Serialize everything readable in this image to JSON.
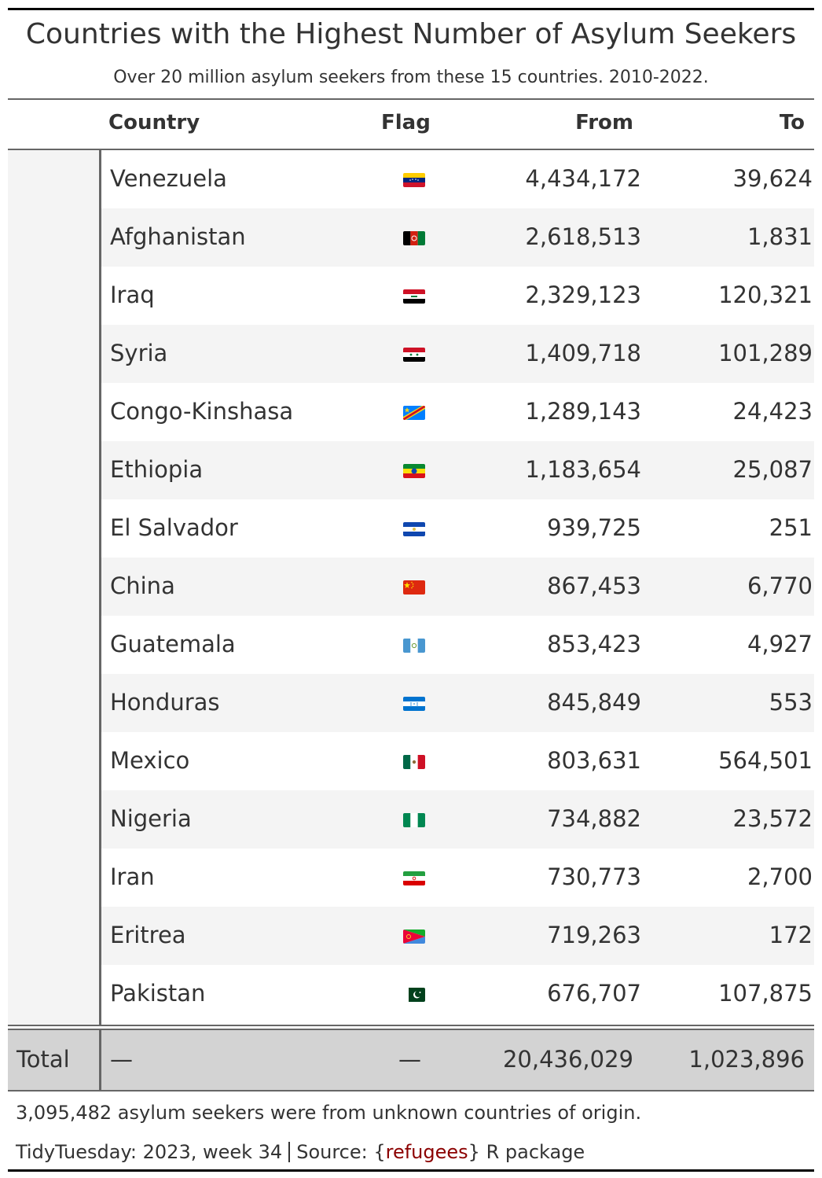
{
  "title": "Countries with the Highest Number of Asylum Seekers",
  "subtitle": "Over 20 million asylum seekers from these 15 countries. 2010-2022.",
  "columns": {
    "country": "Country",
    "flag": "Flag",
    "from": "From",
    "to": "To"
  },
  "rows": [
    {
      "country": "Venezuela",
      "flag": "flag-venezuela-icon",
      "from": "4,434,172",
      "to": "39,624"
    },
    {
      "country": "Afghanistan",
      "flag": "flag-afghanistan-icon",
      "from": "2,618,513",
      "to": "1,831"
    },
    {
      "country": "Iraq",
      "flag": "flag-iraq-icon",
      "from": "2,329,123",
      "to": "120,321"
    },
    {
      "country": "Syria",
      "flag": "flag-syria-icon",
      "from": "1,409,718",
      "to": "101,289"
    },
    {
      "country": "Congo-Kinshasa",
      "flag": "flag-congo-kinshasa-icon",
      "from": "1,289,143",
      "to": "24,423"
    },
    {
      "country": "Ethiopia",
      "flag": "flag-ethiopia-icon",
      "from": "1,183,654",
      "to": "25,087"
    },
    {
      "country": "El Salvador",
      "flag": "flag-el-salvador-icon",
      "from": "939,725",
      "to": "251"
    },
    {
      "country": "China",
      "flag": "flag-china-icon",
      "from": "867,453",
      "to": "6,770"
    },
    {
      "country": "Guatemala",
      "flag": "flag-guatemala-icon",
      "from": "853,423",
      "to": "4,927"
    },
    {
      "country": "Honduras",
      "flag": "flag-honduras-icon",
      "from": "845,849",
      "to": "553"
    },
    {
      "country": "Mexico",
      "flag": "flag-mexico-icon",
      "from": "803,631",
      "to": "564,501"
    },
    {
      "country": "Nigeria",
      "flag": "flag-nigeria-icon",
      "from": "734,882",
      "to": "23,572"
    },
    {
      "country": "Iran",
      "flag": "flag-iran-icon",
      "from": "730,773",
      "to": "2,700"
    },
    {
      "country": "Eritrea",
      "flag": "flag-eritrea-icon",
      "from": "719,263",
      "to": "172"
    },
    {
      "country": "Pakistan",
      "flag": "flag-pakistan-icon",
      "from": "676,707",
      "to": "107,875"
    }
  ],
  "total": {
    "label": "Total",
    "country": "—",
    "flag": "—",
    "from": "20,436,029",
    "to": "1,023,896"
  },
  "footnote": "3,095,482 asylum seekers were from unknown countries of origin.",
  "source": {
    "prefix": "TidyTuesday: 2023, week 34",
    "source_label": "Source: {",
    "package": "refugees",
    "suffix": "} R package"
  },
  "colors": {
    "stub_bg": "#f4f4f4",
    "total_bg": "#d3d3d3",
    "package_link": "#8b0000",
    "text": "#333333"
  }
}
